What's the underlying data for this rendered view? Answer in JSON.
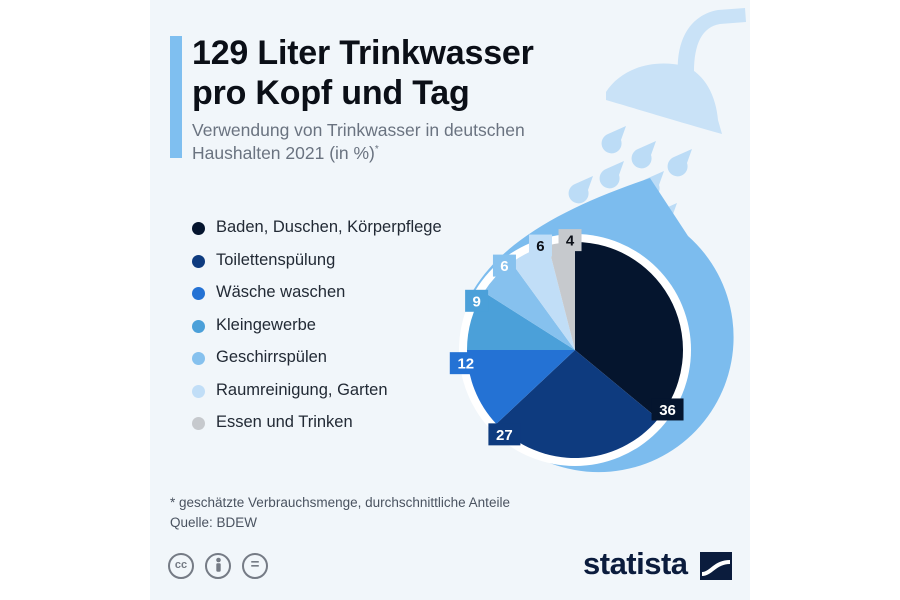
{
  "title": {
    "line1": "129 Liter Trinkwasser",
    "line2": "pro Kopf und Tag"
  },
  "subtitle": {
    "line1": "Verwendung von Trinkwasser in deutschen",
    "line2": "Haushalten 2021 (in %)",
    "marker": "*"
  },
  "footnote": "* geschätzte Verbrauchsmenge, durchschnittliche Anteile",
  "source": "Quelle: BDEW",
  "license_icons": {
    "cc": "cc",
    "by": "by-person-icon",
    "nd": "="
  },
  "brand": {
    "name": "statista"
  },
  "colors": {
    "accent": "#7fbff0",
    "drop": "#7cbcee",
    "rain": "#bcdcf6",
    "shower": "#c9e2f7"
  },
  "chart_data": {
    "type": "pie",
    "title": "129 Liter Trinkwasser pro Kopf und Tag",
    "subtitle": "Verwendung von Trinkwasser in deutschen Haushalten 2021 (in %)",
    "unit": "%",
    "legend_position": "left",
    "slices": [
      {
        "label": "Baden, Duschen, Körperpflege",
        "value": 36,
        "color": "#05152e",
        "text_color": "#ffffff"
      },
      {
        "label": "Toilettenspülung",
        "value": 27,
        "color": "#0e3b7f",
        "text_color": "#ffffff"
      },
      {
        "label": "Wäsche waschen",
        "value": 12,
        "color": "#2472d4",
        "text_color": "#ffffff"
      },
      {
        "label": "Kleingewerbe",
        "value": 9,
        "color": "#4ba0d9",
        "text_color": "#ffffff"
      },
      {
        "label": "Geschirrspülen",
        "value": 6,
        "color": "#86c1ee",
        "text_color": "#ffffff"
      },
      {
        "label": "Raumreinigung, Garten",
        "value": 6,
        "color": "#c1def7",
        "text_color": "#0b0f17"
      },
      {
        "label": "Essen und Trinken",
        "value": 4,
        "color": "#c6c9cd",
        "text_color": "#0b0f17"
      }
    ]
  }
}
